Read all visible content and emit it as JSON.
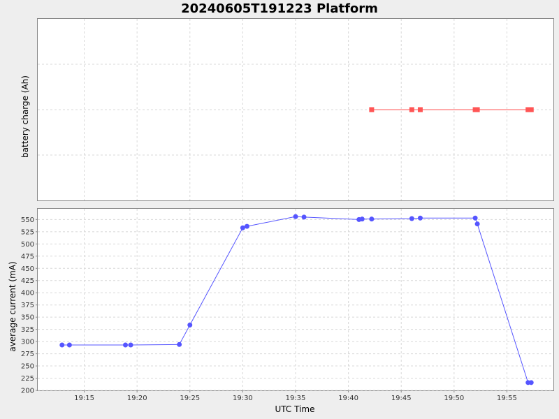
{
  "chart_data": {
    "title": "20240605T191223 Platform",
    "xlabel": "UTC Time",
    "x_ticks": [
      "19:15",
      "19:20",
      "19:25",
      "19:30",
      "19:35",
      "19:40",
      "19:45",
      "19:50",
      "19:55"
    ],
    "x_tick_minutes": [
      1155,
      1160,
      1165,
      1170,
      1175,
      1180,
      1185,
      1190,
      1195
    ],
    "xlim": [
      "19:10.6",
      "19:59.4"
    ],
    "xlim_minutes": [
      1150.6,
      1199.4
    ],
    "grid": true,
    "panels": [
      {
        "type": "line",
        "ylabel": "battery charge (Ah)",
        "y_ticks": [],
        "ylim": [
          0,
          1
        ],
        "color": "#ff5555",
        "marker": "square",
        "series": [
          {
            "x": [
              "19:42.2",
              "19:46.0",
              "19:46.8",
              "19:52.0",
              "19:52.2",
              "19:57.0",
              "19:57.3"
            ],
            "x_minutes": [
              1182.2,
              1186.0,
              1186.8,
              1192.0,
              1192.2,
              1197.0,
              1197.3
            ],
            "values": [
              0.5,
              0.5,
              0.5,
              0.5,
              0.5,
              0.5,
              0.5
            ]
          }
        ]
      },
      {
        "type": "line",
        "ylabel": "average current (mA)",
        "y_ticks": [
          200,
          225,
          250,
          275,
          300,
          325,
          350,
          375,
          400,
          425,
          450,
          475,
          500,
          525,
          550
        ],
        "ylim": [
          200,
          572
        ],
        "color": "#5555ff",
        "marker": "circle",
        "series": [
          {
            "x": [
              "19:12.9",
              "19:13.6",
              "19:18.9",
              "19:19.4",
              "19:24.0",
              "19:25.0",
              "19:30.0",
              "19:30.4",
              "19:35.0",
              "19:35.8",
              "19:41.0",
              "19:41.3",
              "19:42.2",
              "19:46.0",
              "19:46.8",
              "19:52.0",
              "19:52.2",
              "19:57.0",
              "19:57.3"
            ],
            "x_minutes": [
              1152.9,
              1153.6,
              1158.9,
              1159.4,
              1164.0,
              1165.0,
              1170.0,
              1170.4,
              1175.0,
              1175.8,
              1181.0,
              1181.3,
              1182.2,
              1186.0,
              1186.8,
              1192.0,
              1192.2,
              1197.0,
              1197.3
            ],
            "values": [
              293,
              293,
              293,
              293,
              294,
              334,
              533,
              536,
              556,
              555,
              550,
              551,
              551,
              552,
              553,
              553,
              541,
              216,
              216
            ]
          }
        ]
      }
    ]
  }
}
